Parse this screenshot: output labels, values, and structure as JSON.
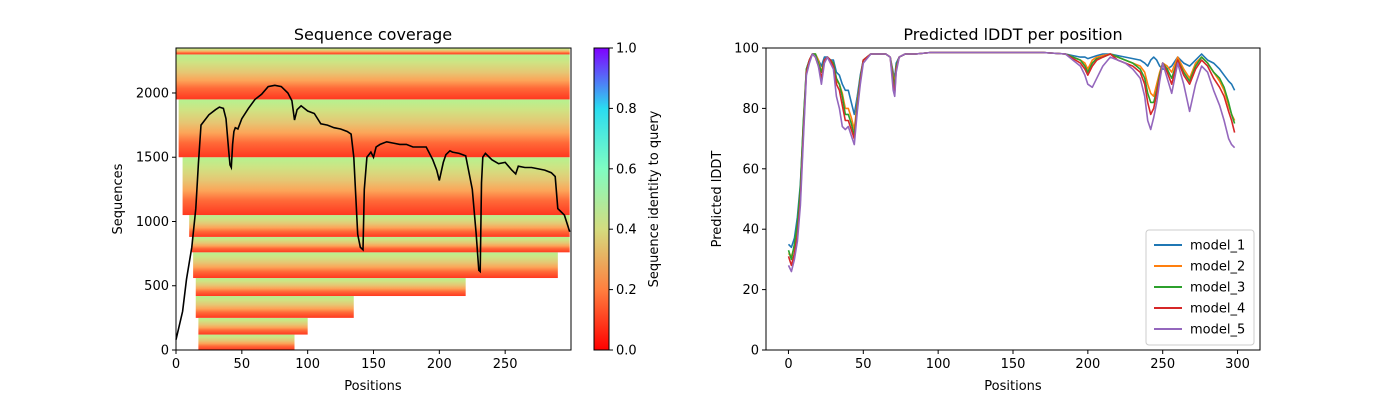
{
  "chart_data": [
    {
      "type": "heatmap",
      "title": "Sequence coverage",
      "xlabel": "Positions",
      "ylabel": "Sequences",
      "xlim": [
        0,
        300
      ],
      "ylim": [
        0,
        2350
      ],
      "x_ticks": [
        0,
        50,
        100,
        150,
        200,
        250
      ],
      "y_ticks": [
        0,
        500,
        1000,
        1500,
        2000
      ],
      "colorbar": {
        "label": "Sequence identity to query",
        "ticks": [
          0.0,
          0.2,
          0.4,
          0.6,
          0.8,
          1.0
        ],
        "tick_labels": [
          "0.0",
          "0.2",
          "0.4",
          "0.6",
          "0.8",
          "1.0"
        ],
        "colormap": "rainbow_r"
      },
      "coverage_line": {
        "color": "#000000",
        "x": [
          0,
          5,
          8,
          12,
          15,
          17,
          19,
          25,
          30,
          33,
          36,
          38,
          40,
          41,
          42,
          43,
          44,
          45,
          47,
          50,
          55,
          60,
          65,
          70,
          75,
          80,
          85,
          88,
          90,
          92,
          95,
          100,
          105,
          110,
          115,
          120,
          125,
          130,
          133,
          135,
          137,
          138,
          140,
          142,
          143,
          145,
          148,
          150,
          152,
          155,
          160,
          165,
          170,
          175,
          180,
          185,
          190,
          195,
          198,
          200,
          203,
          205,
          208,
          210,
          215,
          220,
          225,
          228,
          230,
          231,
          232,
          233,
          235,
          240,
          245,
          250,
          255,
          258,
          260,
          265,
          270,
          280,
          285,
          288,
          290,
          295,
          299
        ],
        "y": [
          80,
          300,
          550,
          800,
          1100,
          1450,
          1750,
          1830,
          1870,
          1890,
          1880,
          1800,
          1550,
          1440,
          1420,
          1600,
          1700,
          1730,
          1720,
          1800,
          1880,
          1950,
          1990,
          2050,
          2060,
          2050,
          2000,
          1940,
          1790,
          1870,
          1900,
          1860,
          1840,
          1760,
          1750,
          1730,
          1720,
          1700,
          1680,
          1500,
          1100,
          900,
          800,
          780,
          1250,
          1500,
          1540,
          1500,
          1580,
          1600,
          1620,
          1610,
          1600,
          1600,
          1580,
          1580,
          1580,
          1480,
          1400,
          1320,
          1460,
          1520,
          1550,
          1540,
          1530,
          1510,
          1250,
          900,
          620,
          610,
          1300,
          1500,
          1530,
          1480,
          1450,
          1460,
          1400,
          1370,
          1430,
          1420,
          1420,
          1400,
          1380,
          1350,
          1100,
          1050,
          920
        ]
      }
    },
    {
      "type": "line",
      "title": "Predicted lDDT per position",
      "xlabel": "Positions",
      "ylabel": "Predicted lDDT",
      "xlim": [
        -15,
        315
      ],
      "ylim": [
        0,
        100
      ],
      "x_ticks": [
        0,
        50,
        100,
        150,
        200,
        250,
        300
      ],
      "y_ticks": [
        0,
        20,
        40,
        60,
        80,
        100
      ],
      "legend_position": "lower-right",
      "x": [
        0,
        2,
        4,
        6,
        8,
        10,
        12,
        14,
        16,
        18,
        20,
        22,
        24,
        26,
        28,
        30,
        32,
        34,
        36,
        38,
        40,
        42,
        44,
        46,
        48,
        50,
        55,
        60,
        65,
        68,
        70,
        71,
        72,
        74,
        78,
        85,
        95,
        110,
        130,
        150,
        170,
        185,
        190,
        195,
        198,
        200,
        203,
        206,
        210,
        215,
        220,
        225,
        230,
        235,
        238,
        240,
        242,
        244,
        246,
        248,
        250,
        253,
        256,
        260,
        264,
        268,
        272,
        276,
        280,
        284,
        288,
        291,
        294,
        296,
        298
      ],
      "series": [
        {
          "name": "model_1",
          "color": "#1f77b4",
          "values": [
            35,
            34,
            37,
            44,
            55,
            75,
            93,
            96,
            98,
            98,
            96,
            94,
            97,
            97,
            96,
            96,
            92,
            91,
            88,
            86,
            86,
            82,
            78,
            84,
            91,
            96,
            98,
            98,
            98,
            97,
            92,
            90,
            95,
            97,
            98,
            98,
            98.5,
            98.5,
            98.5,
            98.5,
            98.5,
            98,
            97.5,
            97,
            97,
            96.5,
            97,
            97.5,
            98,
            98,
            97.5,
            97,
            96.5,
            96,
            95,
            94,
            96,
            97,
            96,
            94,
            93,
            93,
            94,
            97,
            95,
            94,
            96,
            98,
            96,
            95,
            93,
            91,
            89,
            88,
            86
          ]
        },
        {
          "name": "model_2",
          "color": "#ff7f0e",
          "values": [
            32,
            31,
            34,
            40,
            52,
            74,
            92,
            96,
            98,
            98,
            96,
            92,
            96,
            97,
            96,
            95,
            89,
            88,
            85,
            80,
            80,
            77,
            73,
            82,
            90,
            96,
            98,
            98,
            98,
            97,
            91,
            88,
            94,
            97,
            98,
            98,
            98.5,
            98.5,
            98.5,
            98.5,
            98.5,
            98,
            97,
            96,
            95,
            93,
            96,
            97,
            97.5,
            98,
            97,
            96,
            95,
            94,
            92,
            88,
            85,
            84,
            88,
            92,
            95,
            94,
            92,
            97,
            93,
            90,
            95,
            97,
            95,
            92,
            89,
            86,
            81,
            78,
            76
          ]
        },
        {
          "name": "model_3",
          "color": "#2ca02c",
          "values": [
            33,
            30,
            35,
            42,
            54,
            76,
            93,
            96,
            98,
            98,
            95,
            92,
            96,
            97,
            96,
            95,
            90,
            88,
            84,
            78,
            78,
            75,
            71,
            81,
            90,
            96,
            98,
            98,
            98,
            97,
            90,
            87,
            94,
            97,
            98,
            98,
            98.5,
            98.5,
            98.5,
            98.5,
            98.5,
            98,
            97,
            96,
            94,
            92,
            95,
            96.5,
            97,
            98,
            97,
            96,
            95,
            93,
            90,
            85,
            82,
            82,
            86,
            91,
            95,
            93,
            90,
            96,
            92,
            89,
            94,
            97,
            95,
            92,
            90,
            87,
            82,
            78,
            75
          ]
        },
        {
          "name": "model_4",
          "color": "#d62728",
          "values": [
            31,
            28,
            32,
            38,
            50,
            72,
            92,
            96,
            98,
            97,
            94,
            90,
            96,
            97,
            96,
            94,
            88,
            86,
            81,
            76,
            76,
            73,
            70,
            80,
            89,
            96,
            98,
            98,
            98,
            97,
            88,
            85,
            93,
            97,
            98,
            98,
            98.5,
            98.5,
            98.5,
            98.5,
            98.5,
            98,
            96.5,
            95,
            93,
            91,
            94,
            96,
            97,
            98,
            96,
            95,
            94,
            92,
            88,
            82,
            78,
            80,
            85,
            90,
            95,
            92,
            88,
            96,
            91,
            88,
            93,
            96,
            94,
            90,
            87,
            84,
            79,
            76,
            72
          ]
        },
        {
          "name": "model_5",
          "color": "#9467bd",
          "values": [
            28,
            26,
            30,
            36,
            48,
            70,
            91,
            95,
            98,
            97,
            94,
            88,
            95,
            97,
            95,
            93,
            84,
            80,
            74,
            73,
            74,
            71,
            68,
            79,
            88,
            95,
            98,
            98,
            98,
            97,
            86,
            84,
            92,
            97,
            98,
            98,
            98.5,
            98.5,
            98.5,
            98.5,
            98.5,
            98,
            96,
            94,
            91,
            88,
            87,
            90,
            94,
            97,
            96,
            95,
            93,
            90,
            84,
            76,
            73,
            77,
            82,
            89,
            95,
            90,
            85,
            95,
            88,
            79,
            88,
            94,
            92,
            86,
            81,
            76,
            70,
            68,
            67
          ]
        }
      ]
    }
  ]
}
